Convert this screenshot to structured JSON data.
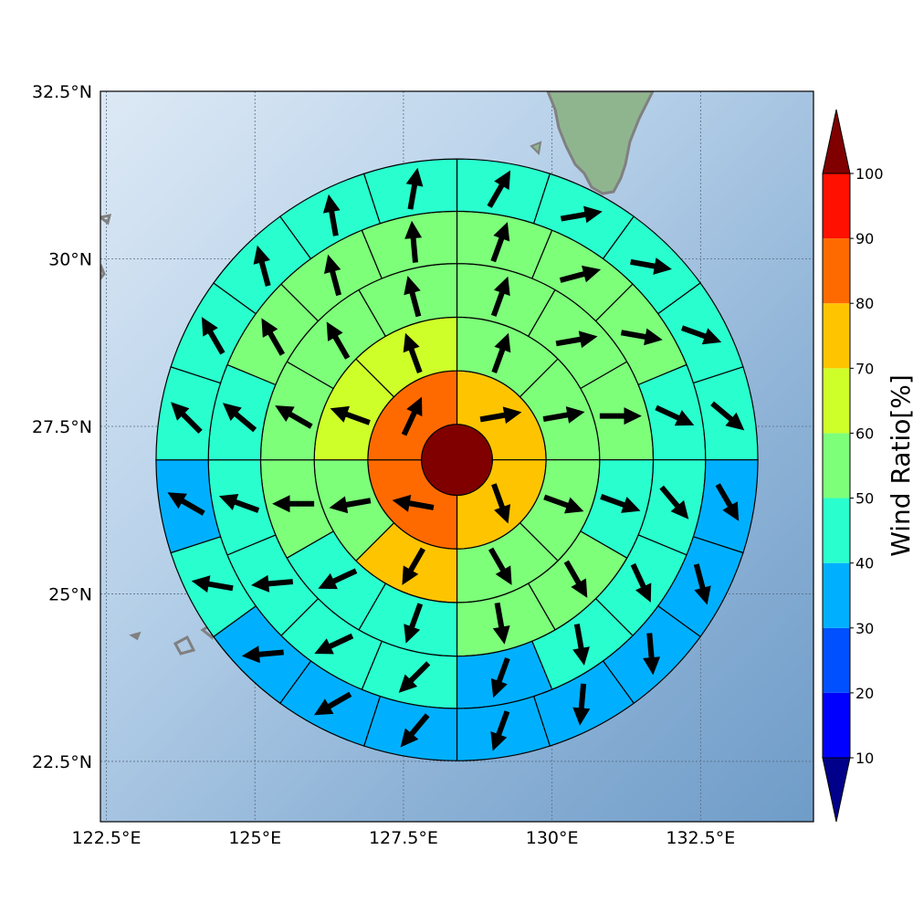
{
  "chart_data": {
    "type": "heatmap",
    "subtype": "polar wind-ratio map with direction arrows",
    "title": "",
    "xlabel": "",
    "ylabel": "",
    "xlim": [
      122.4,
      134.4
    ],
    "ylim": [
      21.6,
      32.5
    ],
    "x_ticks": [
      "122.5°E",
      "125°E",
      "127.5°E",
      "130°E",
      "132.5°E"
    ],
    "x_tick_values": [
      122.5,
      125,
      127.5,
      130,
      132.5
    ],
    "y_ticks": [
      "22.5°N",
      "25°N",
      "27.5°N",
      "30°N",
      "32.5°N"
    ],
    "y_tick_values": [
      22.5,
      25,
      27.5,
      30,
      32.5
    ],
    "grid": true,
    "center": {
      "lon": 128.4,
      "lat": 27.0
    },
    "ring_outer_radii_deg_lat": [
      0.53,
      1.33,
      2.13,
      2.93,
      3.71,
      4.49
    ],
    "sectors_per_ring": [
      1,
      4,
      8,
      12,
      16,
      20
    ],
    "sector_order": "clockwise from north",
    "ring_values_percent": [
      [
        100
      ],
      [
        75,
        75,
        85,
        85
      ],
      [
        55,
        55,
        55,
        55,
        75,
        55,
        65,
        65
      ],
      [
        55,
        55,
        55,
        45,
        55,
        55,
        45,
        45,
        55,
        55,
        55,
        55
      ],
      [
        55,
        55,
        55,
        45,
        45,
        45,
        45,
        35,
        45,
        45,
        45,
        45,
        45,
        55,
        55,
        55
      ],
      [
        45,
        45,
        45,
        45,
        45,
        35,
        35,
        35,
        35,
        35,
        35,
        35,
        35,
        45,
        35,
        45,
        45,
        45,
        45,
        45
      ]
    ],
    "ring_arrow_directions_deg": [
      [
        null
      ],
      [
        80,
        160,
        280,
        25
      ],
      [
        20,
        80,
        110,
        150,
        210,
        260,
        290,
        340
      ],
      [
        20,
        80,
        90,
        110,
        150,
        170,
        200,
        245,
        270,
        300,
        330,
        345
      ],
      [
        20,
        75,
        100,
        115,
        140,
        155,
        170,
        200,
        225,
        245,
        265,
        290,
        310,
        330,
        345,
        355
      ],
      [
        30,
        80,
        100,
        110,
        130,
        150,
        165,
        175,
        185,
        200,
        220,
        240,
        265,
        280,
        300,
        315,
        330,
        345,
        350,
        10
      ]
    ],
    "colorbar": {
      "label": "Wind Ratio[%]",
      "ticks": [
        "10",
        "20",
        "30",
        "40",
        "50",
        "60",
        "70",
        "80",
        "90",
        "100"
      ],
      "bounds": [
        0,
        10,
        20,
        30,
        40,
        50,
        60,
        70,
        80,
        90,
        100,
        110
      ],
      "colors": [
        "#00008b",
        "#0000ff",
        "#0050ff",
        "#00b0ff",
        "#29ffce",
        "#7dff7a",
        "#ceff29",
        "#ffc400",
        "#ff6a00",
        "#ff1000",
        "#800000"
      ],
      "extend": "both"
    }
  }
}
